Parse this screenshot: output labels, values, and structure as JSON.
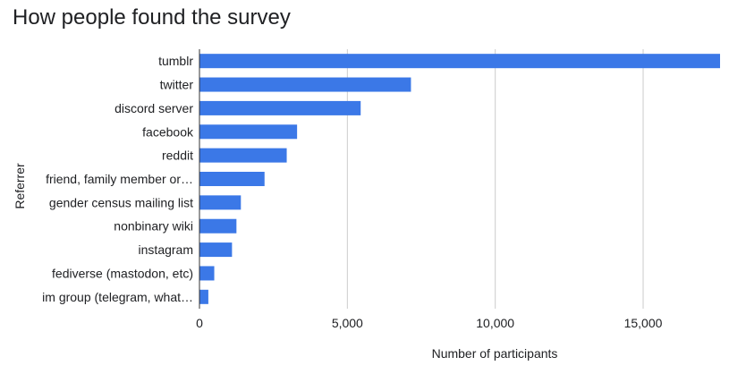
{
  "chart_data": {
    "type": "bar",
    "orientation": "horizontal",
    "title": "How people found the survey",
    "xlabel": "Number of participants",
    "ylabel": "Referrer",
    "categories": [
      "tumblr",
      "twitter",
      "discord server",
      "facebook",
      "reddit",
      "friend, family member or…",
      "gender census mailing list",
      "nonbinary wiki",
      "instagram",
      "fediverse (mastodon, etc)",
      "im group (telegram, what…"
    ],
    "values": [
      17600,
      7150,
      5450,
      3300,
      2950,
      2200,
      1400,
      1250,
      1100,
      500,
      300
    ],
    "xlim": [
      0,
      17600
    ],
    "xticks": [
      0,
      5000,
      10000,
      15000
    ],
    "xtick_labels": [
      "0",
      "5,000",
      "10,000",
      "15,000"
    ],
    "grid": true,
    "bar_color": "#3b78e7",
    "grid_color": "#cccccc",
    "axis_color": "#333333"
  }
}
